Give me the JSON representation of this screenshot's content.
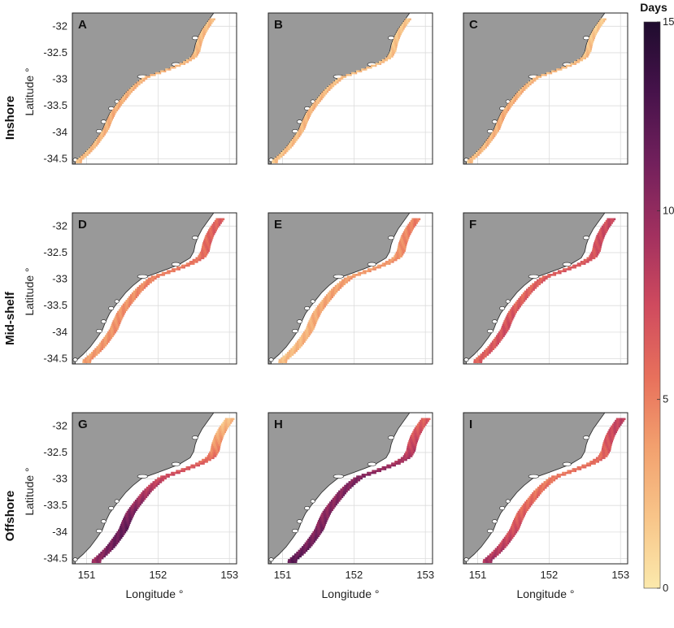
{
  "chart_data": {
    "type": "heatmap",
    "description_colormap": [
      "#fbe9ac",
      "#f8c68a",
      "#f2a06e",
      "#e8715c",
      "#cf4a5e",
      "#a3315f",
      "#72205c",
      "#45124a",
      "#1f0c2e"
    ],
    "land_color": "#999999",
    "colorbar": {
      "title": "Days",
      "range": [
        0,
        15
      ],
      "ticks": [
        "0",
        "5",
        "10",
        "15"
      ]
    },
    "x_axis": {
      "label": "Longitude °",
      "range": [
        150.8,
        153.1
      ],
      "ticks": [
        "151",
        "152",
        "153"
      ]
    },
    "y_axis": {
      "label": "Latitude °",
      "range": [
        -34.6,
        -31.75
      ],
      "ticks": [
        "-32",
        "-32.5",
        "-33",
        "-33.5",
        "-34",
        "-34.5"
      ]
    },
    "rows": [
      "Inshore",
      "Mid-shelf",
      "Offshore"
    ],
    "panels": [
      {
        "label": "A",
        "row": "Inshore",
        "days_profile": [
          2.0,
          2.2,
          2.5,
          2.8,
          2.6,
          2.4,
          2.3,
          2.2,
          2.1,
          2.0
        ]
      },
      {
        "label": "B",
        "row": "Inshore",
        "days_profile": [
          1.8,
          2.0,
          2.2,
          2.4,
          2.2,
          2.0,
          1.9,
          1.8,
          1.7,
          1.6
        ]
      },
      {
        "label": "C",
        "row": "Inshore",
        "days_profile": [
          2.0,
          2.3,
          2.6,
          2.9,
          2.5,
          2.2,
          2.1,
          1.8,
          1.5,
          1.3
        ]
      },
      {
        "label": "D",
        "row": "Mid-shelf",
        "days_profile": [
          3.5,
          3.8,
          4.0,
          4.0,
          4.2,
          4.6,
          5.2,
          5.8,
          6.0,
          6.2
        ]
      },
      {
        "label": "E",
        "row": "Mid-shelf",
        "days_profile": [
          2.0,
          2.3,
          2.6,
          3.0,
          3.2,
          3.5,
          3.8,
          4.2,
          4.6,
          5.0
        ]
      },
      {
        "label": "F",
        "row": "Mid-shelf",
        "days_profile": [
          6.0,
          6.5,
          7.0,
          6.5,
          6.0,
          6.2,
          6.5,
          7.0,
          7.2,
          7.5
        ]
      },
      {
        "label": "G",
        "row": "Offshore",
        "days_profile": [
          9.5,
          11.0,
          11.5,
          10.5,
          9.0,
          7.5,
          6.0,
          4.0,
          2.5,
          1.5
        ]
      },
      {
        "label": "H",
        "row": "Offshore",
        "days_profile": [
          12.0,
          11.0,
          10.5,
          10.0,
          10.2,
          10.5,
          9.0,
          7.5,
          6.5,
          6.0
        ]
      },
      {
        "label": "I",
        "row": "Offshore",
        "days_profile": [
          9.0,
          8.0,
          7.0,
          6.0,
          5.5,
          5.0,
          5.5,
          6.5,
          7.5,
          8.0
        ]
      }
    ]
  }
}
